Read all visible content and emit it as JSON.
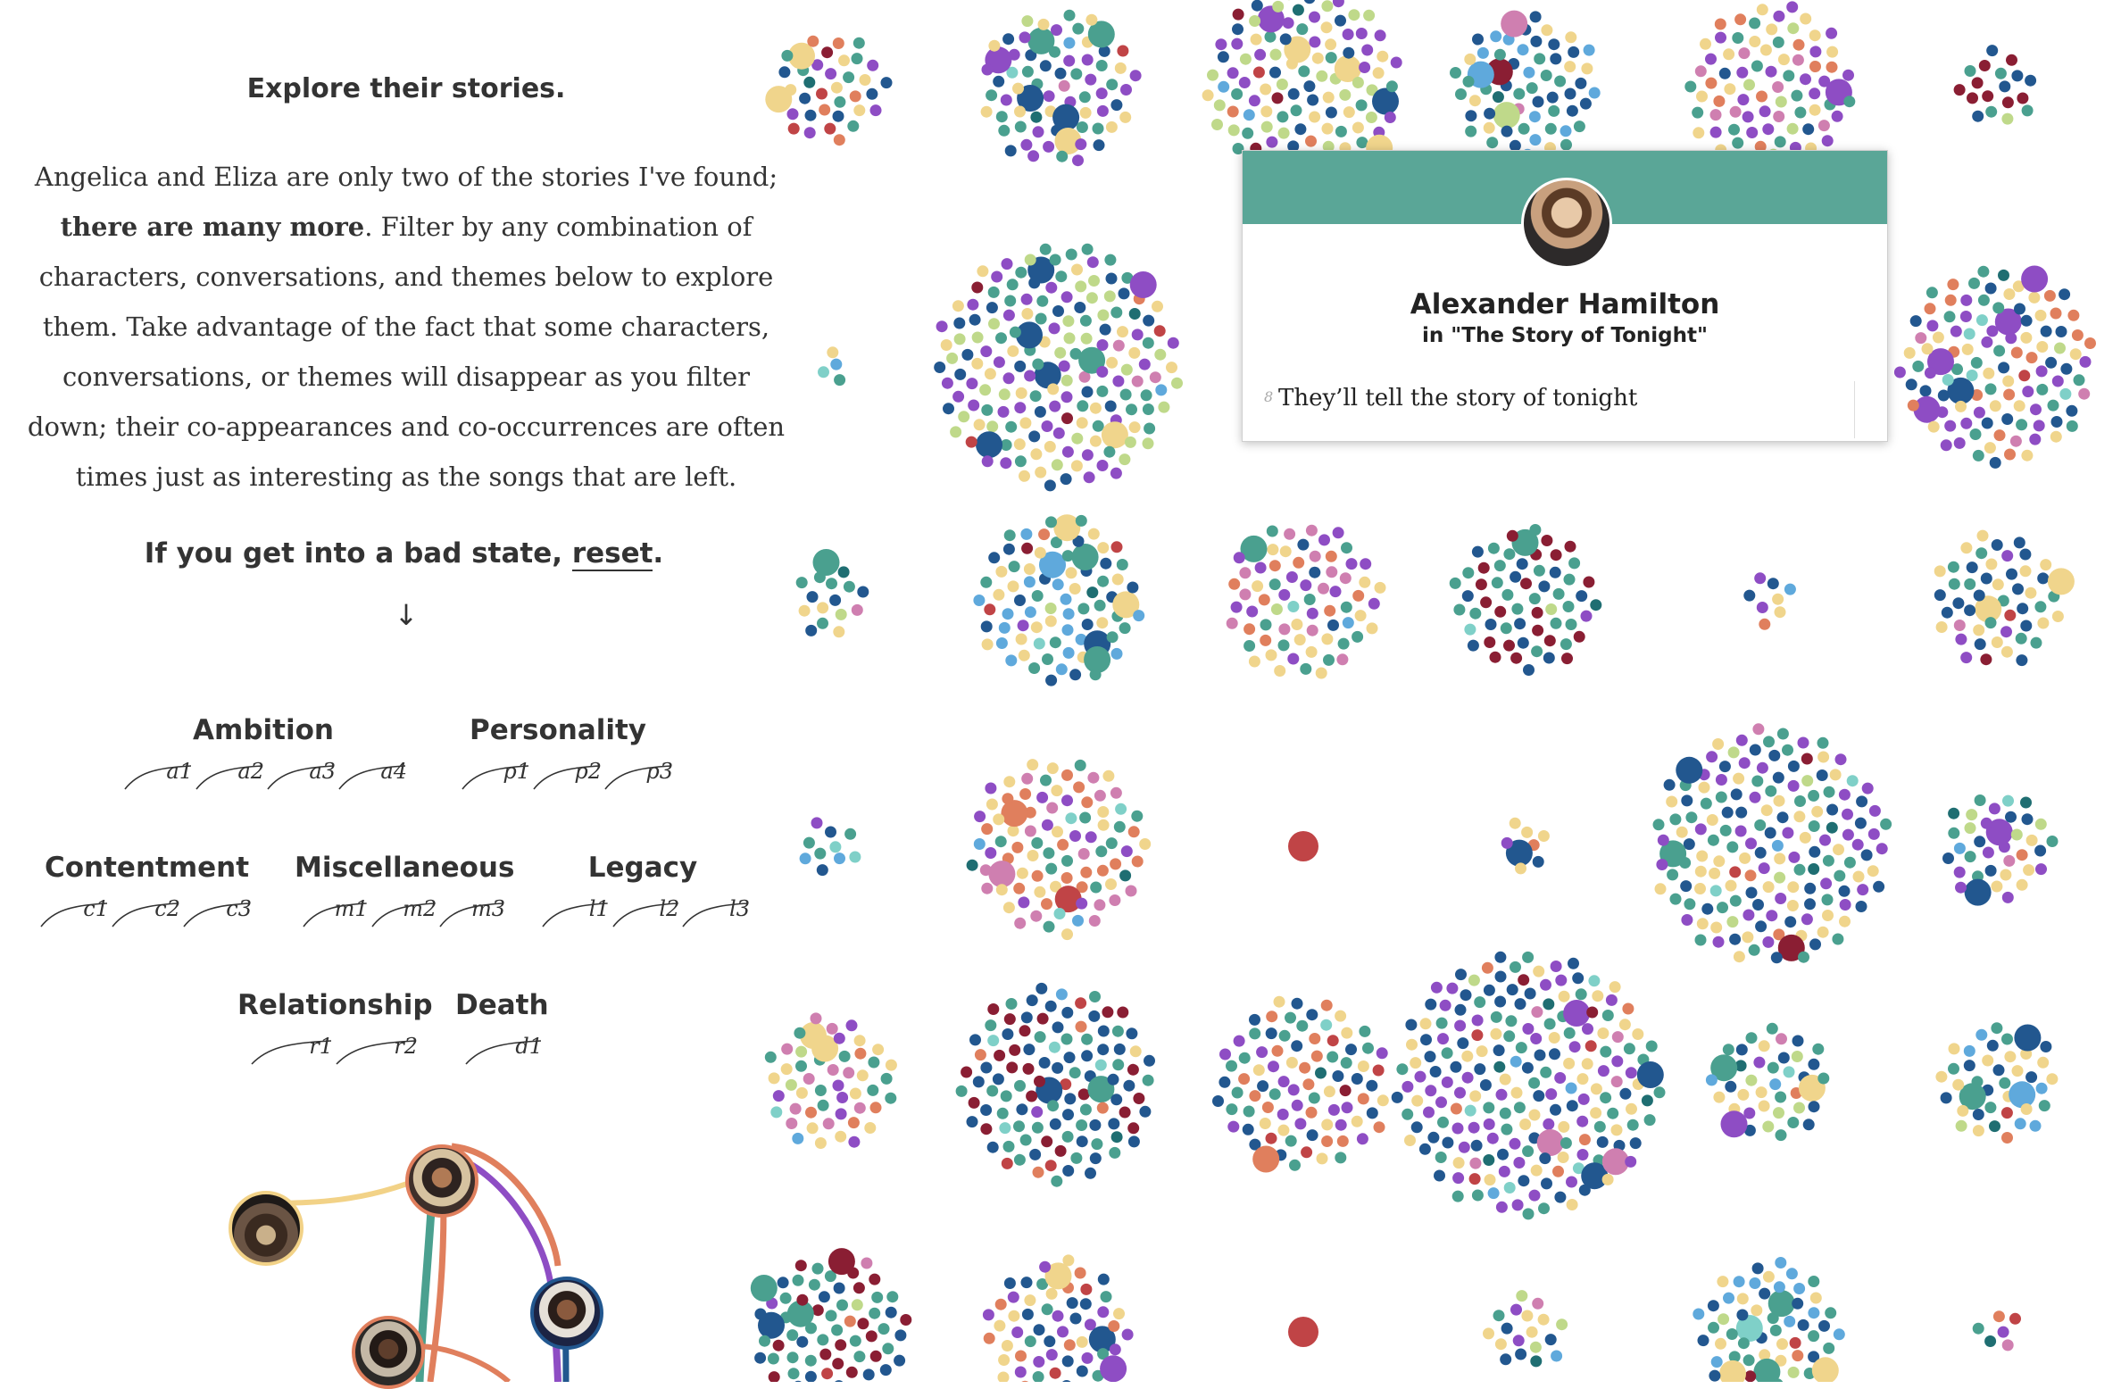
{
  "sidebar": {
    "heading": "Explore their stories.",
    "intro_lead": "Angelica and Eliza are only two of the stories I've found;",
    "intro_bold": "there are many more",
    "intro_rest": ". Filter by any combination of characters, conversations, and themes below to explore them. Take advantage of the fact that some characters, conversations, or themes will disappear as you filter down; their co-appearances and co-occurrences are often times just as interesting as the songs that are left.",
    "reset_prefix": "If you get into a bad state, ",
    "reset_link": "reset",
    "reset_suffix": ".",
    "arrow": "↓"
  },
  "themes": {
    "ambition": {
      "title": "Ambition",
      "chips": [
        "a1",
        "a2",
        "a3",
        "a4"
      ]
    },
    "personality": {
      "title": "Personality",
      "chips": [
        "p1",
        "p2",
        "p3"
      ]
    },
    "contentment": {
      "title": "Contentment",
      "chips": [
        "c1",
        "c2",
        "c3"
      ]
    },
    "miscellaneous": {
      "title": "Miscellaneous",
      "chips": [
        "m1",
        "m2",
        "m3"
      ]
    },
    "legacy": {
      "title": "Legacy",
      "chips": [
        "l1",
        "l2",
        "l3"
      ]
    },
    "relationship": {
      "title": "Relationship",
      "chips": [
        "r1",
        "r2"
      ]
    },
    "death": {
      "title": "Death",
      "chips": [
        "d1"
      ]
    }
  },
  "tooltip": {
    "name": "Alexander Hamilton",
    "song": "in \"The Story of Tonight\"",
    "line_number": "8",
    "line": "They’ll tell the story of tonight",
    "band_color": "#5aa697",
    "avatar_icon": "person-portrait-icon"
  },
  "palette": {
    "teal": "#4aa08f",
    "navy": "#22578f",
    "purple": "#8e4dc4",
    "yellow": "#f0d58c",
    "orange": "#e07f5d",
    "lightblue": "#5fa9dc",
    "pink": "#cf7fb0",
    "red": "#c04446",
    "maroon": "#8a1e33",
    "aqua": "#7fd0c8",
    "lime": "#bfd98a",
    "darkteal": "#1f6e72"
  },
  "network": {
    "nodes_icons": [
      "ensemble-photo-icon",
      "character-photo-icon",
      "character-photo-icon",
      "character-photo-icon"
    ],
    "link_colors": [
      "#f2d287",
      "#4aa08f",
      "#8e4dc4",
      "#e07f5d",
      "#22578f"
    ]
  }
}
